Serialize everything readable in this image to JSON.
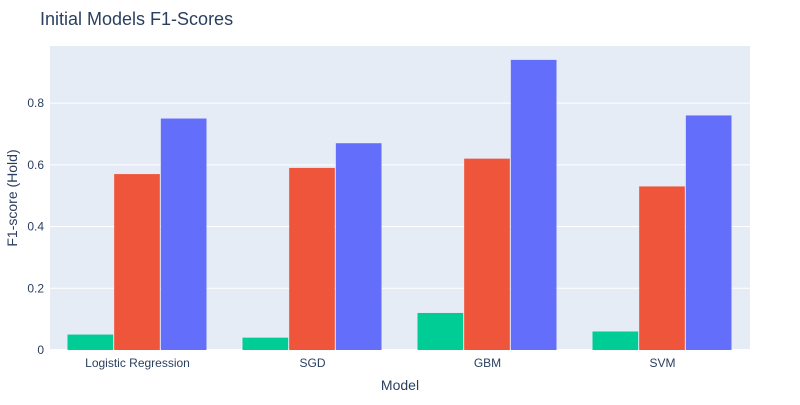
{
  "chart_data": {
    "type": "bar",
    "title": "Initial Models F1-Scores",
    "xlabel": "Model",
    "ylabel": "F1-score (Hold)",
    "categories": [
      "Logistic Regression",
      "SGD",
      "GBM",
      "SVM"
    ],
    "ylim": [
      0,
      1.0
    ],
    "yticks": [
      0,
      0.2,
      0.4,
      0.6,
      0.8
    ],
    "ytick_labels": [
      "0",
      "0.2",
      "0.4",
      "0.6",
      "0.8"
    ],
    "grid": true,
    "legend": "none",
    "series": [
      {
        "color": "#00cc96",
        "values": [
          0.05,
          0.04,
          0.12,
          0.06
        ]
      },
      {
        "color": "#ef553b",
        "values": [
          0.57,
          0.59,
          0.62,
          0.53
        ]
      },
      {
        "color": "#636efa",
        "values": [
          0.75,
          0.67,
          0.94,
          0.76
        ]
      }
    ],
    "plot_bg": "#e5ecf6"
  }
}
